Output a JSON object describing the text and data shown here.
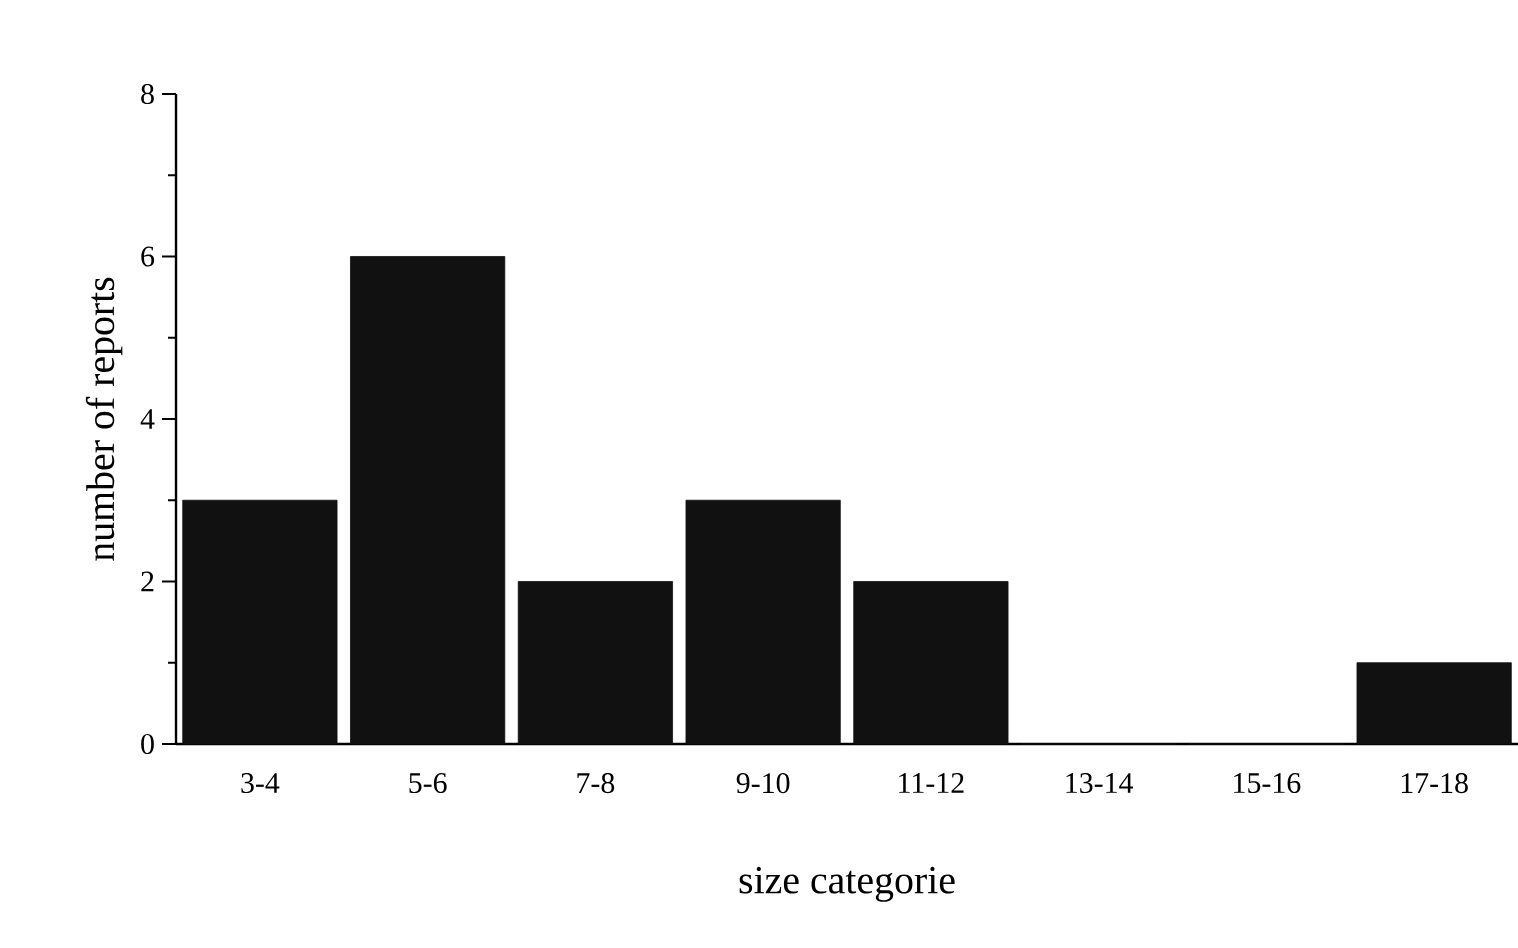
{
  "chart_data": {
    "type": "bar",
    "xlabel": "size categorie",
    "ylabel": "number of reports",
    "categories": [
      "3-4",
      "5-6",
      "7-8",
      "9-10",
      "11-12",
      "13-14",
      "15-16",
      "17-18"
    ],
    "values": [
      3,
      6,
      2,
      3,
      2,
      0,
      0,
      1
    ],
    "color": "#111111",
    "ylim": [
      0,
      8
    ],
    "yticks": [
      0,
      2,
      4,
      6,
      8
    ]
  }
}
